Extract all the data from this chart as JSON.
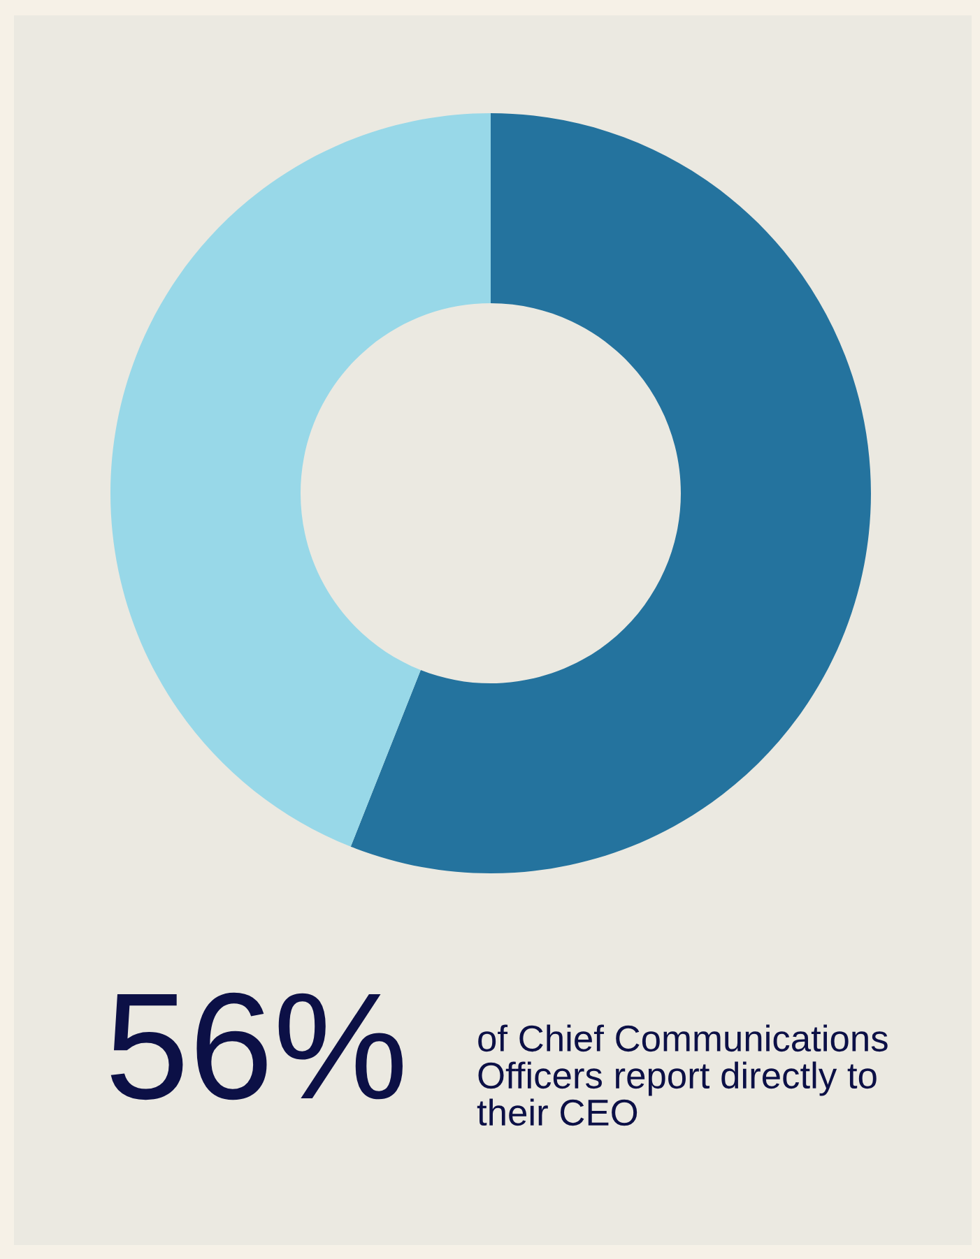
{
  "chart_data": {
    "type": "donut",
    "categories": [
      null,
      null
    ],
    "values": [
      56,
      44
    ],
    "colors": [
      "#24739e",
      "#98d8e8"
    ],
    "annotations": [
      "56%",
      "of Chief Communications\nOfficers report directly to\ntheir CEO"
    ]
  }
}
